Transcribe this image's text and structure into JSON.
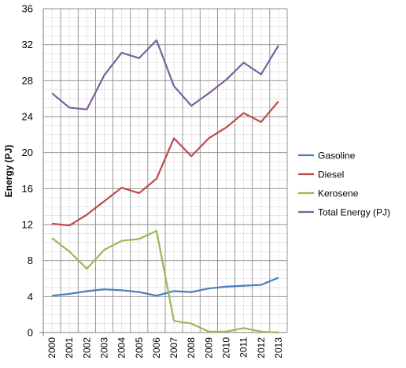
{
  "chart_data": {
    "type": "line",
    "title": "",
    "xlabel": "",
    "ylabel": "Energy (PJ)",
    "x": [
      "2000",
      "2001",
      "2002",
      "2003",
      "2004",
      "2005",
      "2006",
      "2007",
      "2008",
      "2009",
      "2010",
      "2011",
      "2012",
      "2013"
    ],
    "ylim": [
      0,
      36
    ],
    "yticks": [
      "0",
      "4",
      "8",
      "12",
      "16",
      "20",
      "24",
      "28",
      "32",
      "36"
    ],
    "grid": true,
    "legend_position": "right",
    "series": [
      {
        "name": "Gasoline",
        "color": "#4a7ebb",
        "values": [
          4.1,
          4.3,
          4.6,
          4.8,
          4.7,
          4.5,
          4.1,
          4.6,
          4.5,
          4.9,
          5.1,
          5.2,
          5.3,
          6.1
        ]
      },
      {
        "name": "Diesel",
        "color": "#be4b48",
        "values": [
          12.1,
          11.9,
          13.1,
          14.6,
          16.1,
          15.5,
          17.1,
          21.6,
          19.6,
          21.6,
          22.8,
          24.4,
          23.4,
          25.7
        ]
      },
      {
        "name": "Kerosene",
        "color": "#98b954",
        "values": [
          10.5,
          9.0,
          7.1,
          9.2,
          10.2,
          10.4,
          11.3,
          1.3,
          1.0,
          0.1,
          0.1,
          0.5,
          0.1,
          0.0
        ]
      },
      {
        "name": "Total Energy (PJ)",
        "color": "#7d60a0",
        "values": [
          26.6,
          25.0,
          24.8,
          28.6,
          31.1,
          30.5,
          32.5,
          27.4,
          25.2,
          26.6,
          28.1,
          30.0,
          28.7,
          31.9
        ]
      }
    ]
  }
}
